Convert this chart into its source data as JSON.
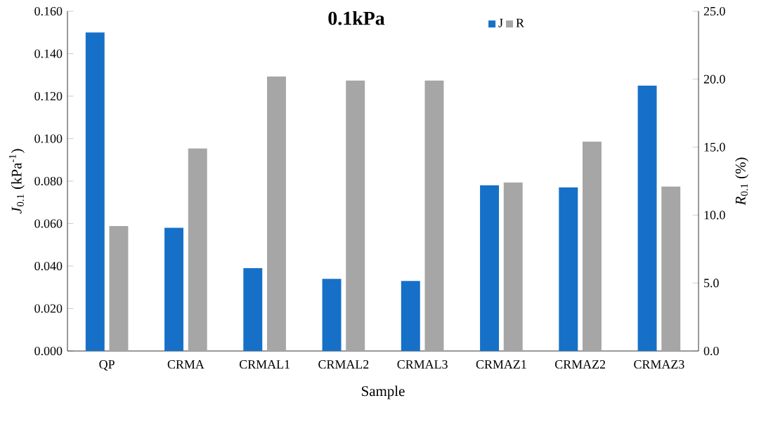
{
  "chart_data": {
    "type": "bar",
    "title": "0.1kPa",
    "xlabel": "Sample",
    "ylabel": "*J*$_{0.1}$ (kPa$^{-1}$)",
    "y2label": "*R*$_{0.1}$ (%)",
    "categories": [
      "QP",
      "CRMA",
      "CRMAL1",
      "CRMAL2",
      "CRMAL3",
      "CRMAZ1",
      "CRMAZ2",
      "CRMAZ3"
    ],
    "series": [
      {
        "name": "J",
        "color": "#1670c8",
        "values": [
          0.15,
          0.058,
          0.039,
          0.034,
          0.033,
          0.078,
          0.077,
          0.125
        ]
      },
      {
        "name": "R",
        "color": "#a6a6a6",
        "axis": "y2",
        "values": [
          9.2,
          14.9,
          20.2,
          19.9,
          19.9,
          12.4,
          15.4,
          12.1
        ]
      }
    ],
    "ylim": [
      0,
      0.16
    ],
    "yticks": [
      {
        "value": 0,
        "label": "0.000"
      },
      {
        "value": 0.02,
        "label": "0.020"
      },
      {
        "value": 0.04,
        "label": "0.040"
      },
      {
        "value": 0.06,
        "label": "0.060"
      },
      {
        "value": 0.08,
        "label": "0.080"
      },
      {
        "value": 0.1,
        "label": "0.100"
      },
      {
        "value": 0.12,
        "label": "0.120"
      },
      {
        "value": 0.14,
        "label": "0.140"
      },
      {
        "value": 0.16,
        "label": "0.160"
      }
    ],
    "y2lim": [
      0,
      25
    ],
    "y2ticks": [
      {
        "value": 0,
        "label": "0.0"
      },
      {
        "value": 5,
        "label": "5.0"
      },
      {
        "value": 10,
        "label": "10.0"
      },
      {
        "value": 15,
        "label": "15.0"
      },
      {
        "value": 20,
        "label": "20.0"
      },
      {
        "value": 25,
        "label": "25.0"
      }
    ],
    "legend": "top",
    "grid": false
  }
}
